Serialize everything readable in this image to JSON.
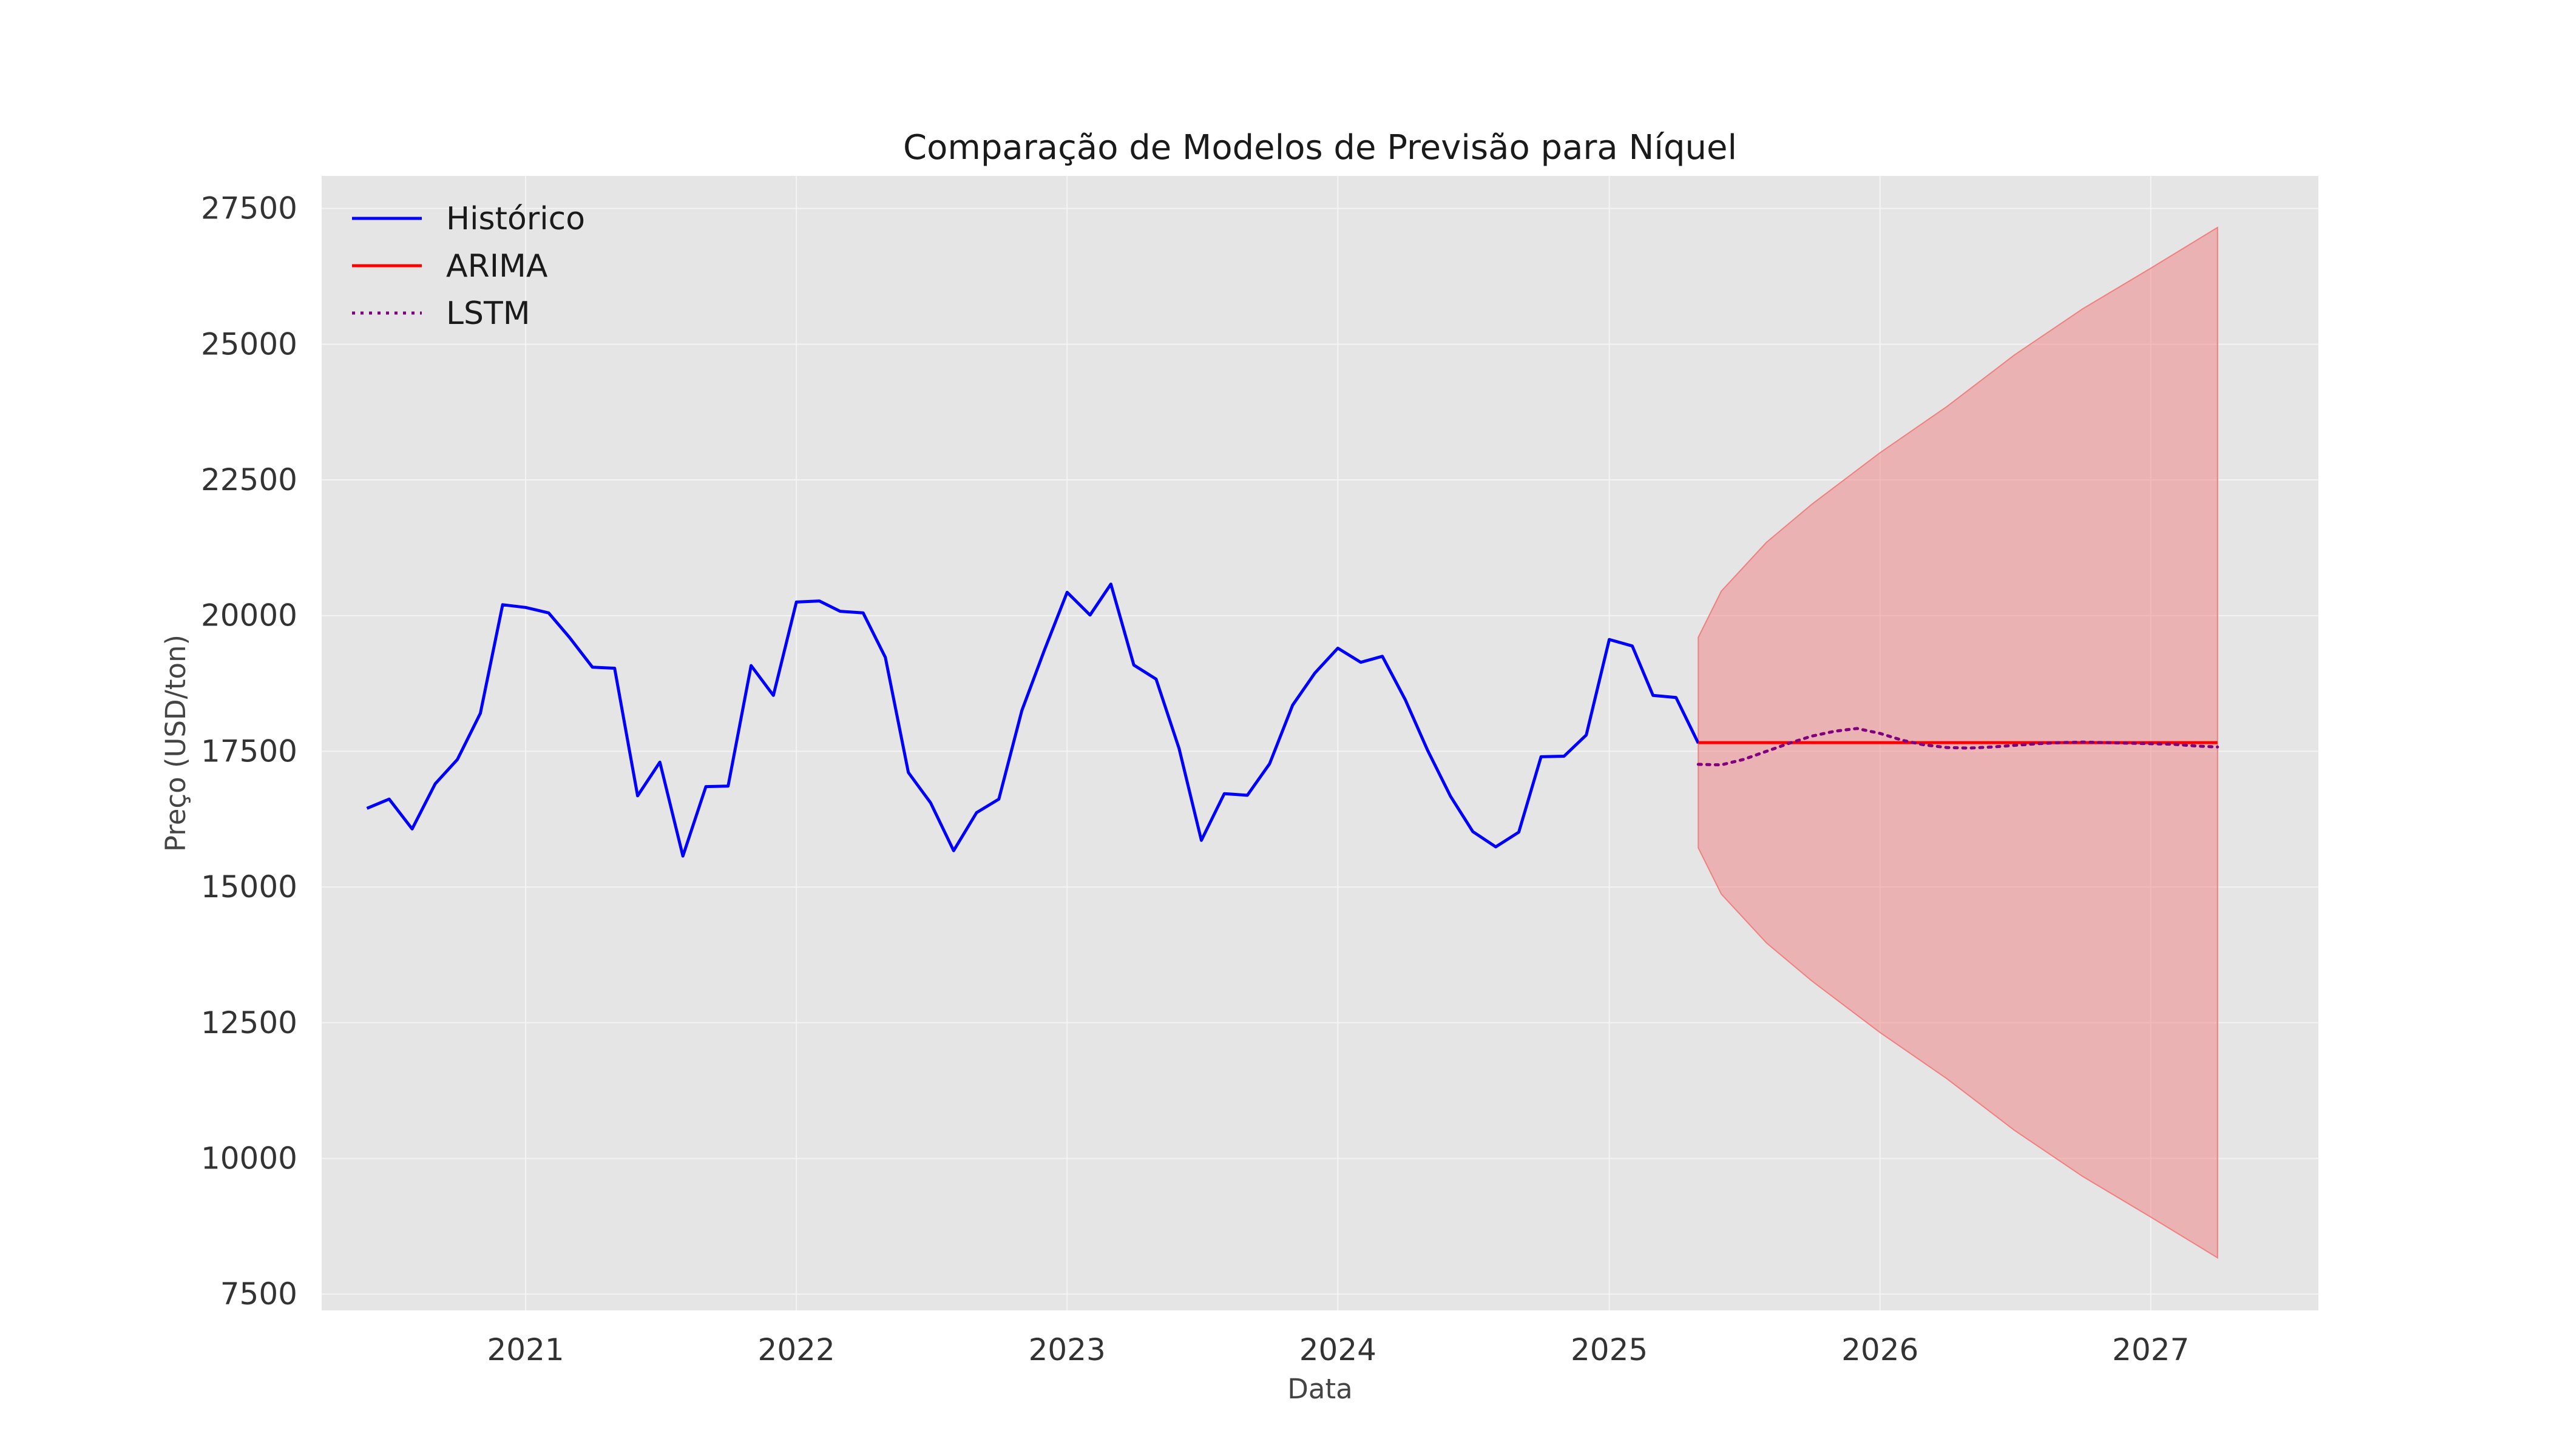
{
  "chart_data": {
    "type": "line",
    "title": "Comparação de Modelos de Previsão para Níquel",
    "xlabel": "Data",
    "ylabel": "Preço (USD/ton)",
    "x_ticks": [
      "2021",
      "2022",
      "2023",
      "2024",
      "2025",
      "2026",
      "2027"
    ],
    "y_ticks": [
      "7500",
      "10000",
      "12500",
      "15000",
      "17500",
      "20000",
      "22500",
      "25000",
      "27500"
    ],
    "xlim": [
      "2020-04-01",
      "2027-08-15"
    ],
    "ylim": [
      7200,
      28100
    ],
    "grid": true,
    "legend_position": "top-left",
    "colors": {
      "background": "#e5e5e5",
      "grid": "#f4f4f4",
      "historico": "#0000ff",
      "arima": "#ff0000",
      "lstm": "#800080",
      "confidence_band": "#f08080"
    },
    "series": [
      {
        "name": "Histórico",
        "style": "solid",
        "x": [
          "2020-06",
          "2020-07",
          "2020-08",
          "2020-09",
          "2020-10",
          "2020-11",
          "2020-12",
          "2021-01",
          "2021-02",
          "2021-03",
          "2021-04",
          "2021-05",
          "2021-06",
          "2021-07",
          "2021-08",
          "2021-09",
          "2021-10",
          "2021-11",
          "2021-12",
          "2022-01",
          "2022-02",
          "2022-03",
          "2022-04",
          "2022-05",
          "2022-06",
          "2022-07",
          "2022-08",
          "2022-09",
          "2022-10",
          "2022-11",
          "2022-12",
          "2023-01",
          "2023-02",
          "2023-03",
          "2023-04",
          "2023-05",
          "2023-06",
          "2023-07",
          "2023-08",
          "2023-09",
          "2023-10",
          "2023-11",
          "2023-12",
          "2024-01",
          "2024-02",
          "2024-03",
          "2024-04",
          "2024-05",
          "2024-06",
          "2024-07",
          "2024-08",
          "2024-09",
          "2024-10",
          "2024-11",
          "2024-12",
          "2025-01",
          "2025-02",
          "2025-03",
          "2025-04",
          "2025-05"
        ],
        "values": [
          16450,
          16620,
          16070,
          16900,
          17350,
          18200,
          20200,
          20150,
          20050,
          19600,
          19050,
          19030,
          16680,
          17300,
          15570,
          16850,
          16860,
          19080,
          18530,
          20250,
          20270,
          20080,
          20050,
          19230,
          17110,
          16550,
          15670,
          16370,
          16620,
          18250,
          19350,
          20430,
          20010,
          20580,
          19090,
          18830,
          17550,
          15860,
          16720,
          16690,
          17270,
          18350,
          18940,
          19400,
          19140,
          19250,
          18450,
          17520,
          16670,
          16020,
          15740,
          16010,
          17400,
          17410,
          17800,
          19560,
          19440,
          18530,
          18490,
          17650
        ]
      },
      {
        "name": "ARIMA",
        "style": "solid",
        "x": [
          "2025-05",
          "2027-04"
        ],
        "values": [
          17660,
          17660
        ]
      },
      {
        "name": "LSTM",
        "style": "dotted",
        "x": [
          "2025-05",
          "2025-06",
          "2025-07",
          "2025-08",
          "2025-09",
          "2025-10",
          "2025-11",
          "2025-12",
          "2026-01",
          "2026-02",
          "2026-03",
          "2026-04",
          "2026-05",
          "2026-06",
          "2026-07",
          "2026-08",
          "2026-09",
          "2026-10",
          "2026-11",
          "2026-12",
          "2027-01",
          "2027-02",
          "2027-03",
          "2027-04"
        ],
        "values": [
          17260,
          17250,
          17350,
          17500,
          17650,
          17780,
          17870,
          17920,
          17830,
          17700,
          17620,
          17570,
          17560,
          17580,
          17610,
          17640,
          17660,
          17670,
          17660,
          17650,
          17640,
          17630,
          17600,
          17580
        ]
      }
    ],
    "confidence_band": {
      "x": [
        "2025-05",
        "2025-06",
        "2025-08",
        "2025-10",
        "2026-01",
        "2026-04",
        "2026-07",
        "2026-10",
        "2027-01",
        "2027-04"
      ],
      "upper": [
        19600,
        20450,
        21350,
        22050,
        23000,
        23850,
        24800,
        25650,
        26400,
        27150
      ],
      "lower": [
        15720,
        14870,
        13970,
        13270,
        12320,
        11470,
        10520,
        9670,
        8920,
        8170
      ]
    }
  }
}
